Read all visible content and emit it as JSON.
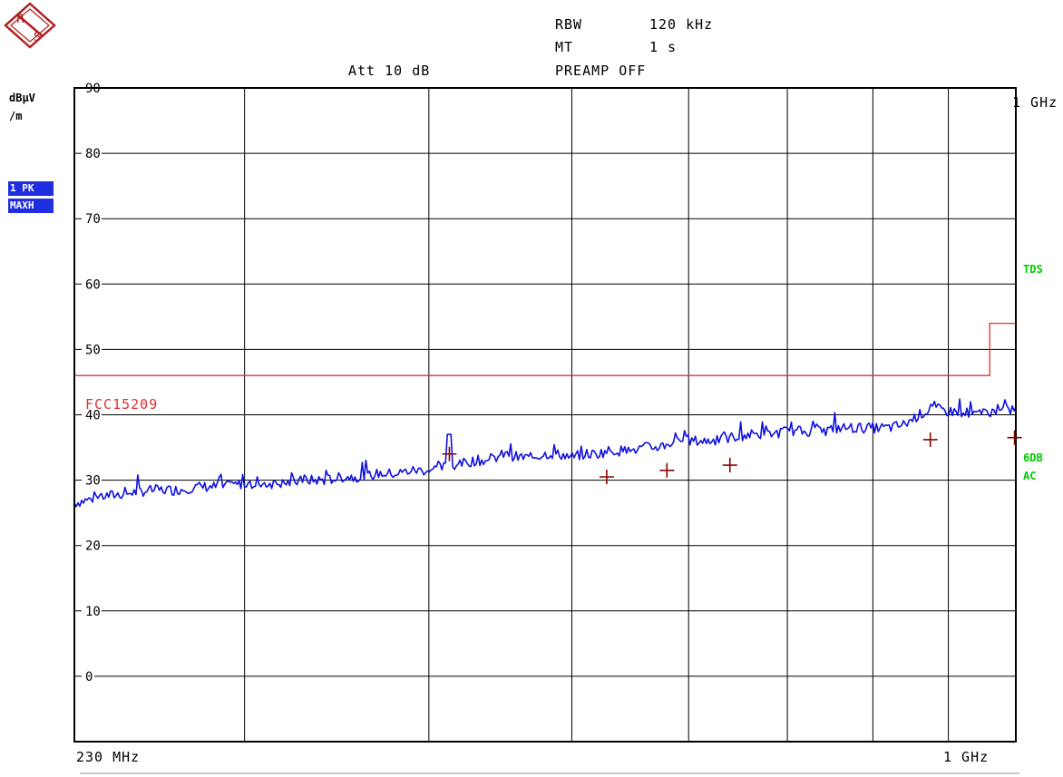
{
  "header": {
    "rbw_label": "RBW",
    "rbw_value": "120 kHz",
    "mt_label": "MT",
    "mt_value": "1 s",
    "att_label": "Att 10 dB",
    "preamp": "PREAMP OFF"
  },
  "logo": {
    "text_r": "R",
    "text_s": "S"
  },
  "y_unit_line1": "dBµV",
  "y_unit_line2": "/m",
  "trace_badges": [
    "1 PK",
    "MAXH"
  ],
  "side_labels": {
    "tds": "TDS",
    "sixdb": "6DB",
    "ac": "AC"
  },
  "x_start_label": "230 MHz",
  "x_stop_label": "1 GHz",
  "marker_freq_label": "1 GHz",
  "colors": {
    "trace": "#1010e0",
    "limit": "#e03030",
    "marker": "#8b0000",
    "badge": "#1f2fe0",
    "side": "#00cc00",
    "grid": "#000000"
  },
  "chart_data": {
    "type": "line",
    "x_scale": "log",
    "xlim": [
      230,
      1000
    ],
    "ylim": [
      -10,
      90
    ],
    "x_unit": "MHz",
    "ytick_values": [
      0,
      10,
      20,
      30,
      40,
      50,
      60,
      70,
      80,
      90
    ],
    "ytick_labels": [
      "0",
      "10",
      "20",
      "30",
      "40",
      "50",
      "60",
      "70",
      "80",
      "90"
    ],
    "x_grid_MHz": [
      300,
      400,
      500,
      600,
      700,
      800,
      900,
      1000
    ],
    "limit_line": {
      "name": "FCC15209",
      "points": [
        [
          230,
          46
        ],
        [
          960,
          46
        ],
        [
          960,
          54
        ],
        [
          1000,
          54
        ]
      ]
    },
    "trace": {
      "name": "1 PK MAXH",
      "x": [
        230,
        240,
        250,
        260,
        270,
        280,
        290,
        300,
        310,
        320,
        330,
        340,
        350,
        360,
        370,
        380,
        390,
        400,
        410,
        420,
        430,
        440,
        450,
        460,
        470,
        480,
        490,
        500,
        510,
        520,
        530,
        540,
        550,
        560,
        570,
        580,
        590,
        600,
        620,
        640,
        660,
        680,
        700,
        720,
        740,
        760,
        780,
        800,
        820,
        840,
        860,
        880,
        900,
        920,
        940,
        960,
        980,
        1000
      ],
      "y": [
        26.5,
        27.5,
        28,
        28.5,
        28.5,
        29,
        29,
        29.5,
        29.5,
        29.5,
        30,
        30,
        30.5,
        30.5,
        31,
        31,
        31.5,
        31.5,
        32,
        32.5,
        33,
        33,
        34,
        33.5,
        33.5,
        34,
        34,
        33.5,
        34,
        34,
        34.5,
        34.5,
        34.5,
        35,
        35,
        35.5,
        36,
        36,
        36,
        36.5,
        37,
        37,
        37.5,
        37.5,
        37.5,
        38,
        38,
        38,
        38,
        38.5,
        40,
        41,
        40.5,
        40.5,
        40,
        40.5,
        40.5,
        41
      ]
    },
    "markers": {
      "x": [
        413,
        528,
        580,
        640,
        875,
        998
      ],
      "y": [
        34,
        30.5,
        31.5,
        32.3,
        36.2,
        36.5
      ]
    }
  }
}
